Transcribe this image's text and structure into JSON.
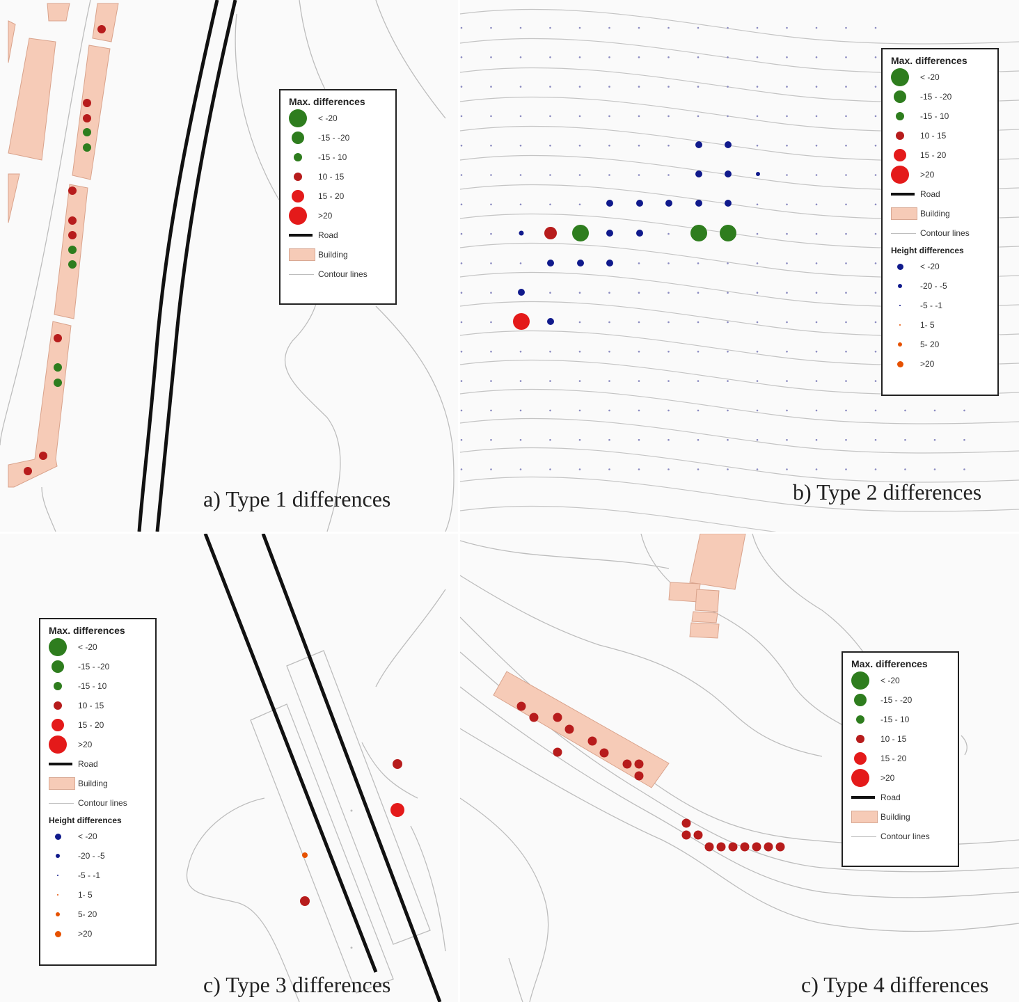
{
  "colors": {
    "green": "#2e7d1e",
    "darkred": "#b71c1c",
    "red": "#e41a1a",
    "blue": "#101a8c",
    "orange": "#e65100",
    "building": "#f6cbb7",
    "road": "#111111",
    "contour": "#bdbdbd"
  },
  "legend_common": {
    "title": "Max. differences",
    "classes": [
      {
        "label": "< -20",
        "color": "green",
        "size": 26
      },
      {
        "label": "-15 - -20",
        "color": "green",
        "size": 18
      },
      {
        "label": "-15 - 10",
        "color": "green",
        "size": 12
      },
      {
        "label": "10 - 15",
        "color": "darkred",
        "size": 12
      },
      {
        "label": "15 - 20",
        "color": "red",
        "size": 18
      },
      {
        "label": ">20",
        "color": "red",
        "size": 26
      }
    ],
    "road": "Road",
    "building": "Building",
    "contour": "Contour lines"
  },
  "legend_height": {
    "title": "Height differences",
    "classes": [
      {
        "label": "< -20",
        "color": "blue",
        "size": 9
      },
      {
        "label": "-20 - -5",
        "color": "blue",
        "size": 6
      },
      {
        "label": "-5 - -1",
        "color": "blue",
        "size": 2
      },
      {
        "label": "1- 5",
        "color": "orange",
        "size": 2
      },
      {
        "label": "5- 20",
        "color": "orange",
        "size": 6
      },
      {
        "label": ">20",
        "color": "orange",
        "size": 9
      }
    ]
  },
  "panels": {
    "a": {
      "caption": "a) Type 1 differences"
    },
    "b": {
      "caption": "b) Type 2 differences"
    },
    "c": {
      "caption": "c) Type 3 differences"
    },
    "d": {
      "caption": "c) Type 4 differences"
    }
  }
}
